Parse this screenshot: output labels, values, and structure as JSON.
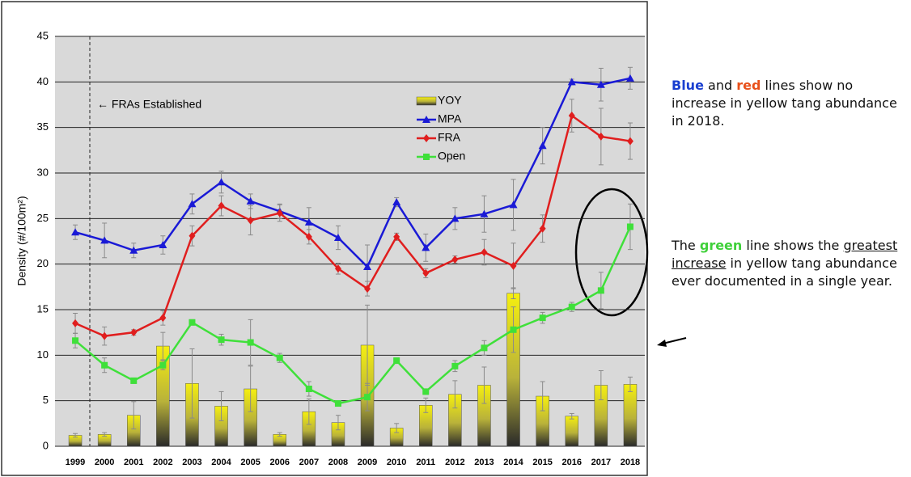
{
  "chart_data": {
    "type": "line",
    "y_label": "Density (#/100m²)",
    "annotation": "← FRAs Established",
    "categories": [
      "1999",
      "2000",
      "2001",
      "2002",
      "2003",
      "2004",
      "2005",
      "2006",
      "2007",
      "2008",
      "2009",
      "2010",
      "2011",
      "2012",
      "2013",
      "2014",
      "2015",
      "2016",
      "2017",
      "2018"
    ],
    "ylim": [
      0,
      45
    ],
    "yticks": [
      0,
      5,
      10,
      15,
      20,
      25,
      30,
      35,
      40,
      45
    ],
    "grid": true,
    "legend": "top-center",
    "series": [
      {
        "name": "YOY",
        "type": "bar",
        "color": "#f2ec1a",
        "values": [
          1.2,
          1.3,
          3.4,
          11.0,
          6.9,
          4.4,
          6.3,
          1.3,
          3.8,
          2.6,
          11.1,
          2.0,
          4.5,
          5.7,
          6.7,
          16.8,
          5.5,
          3.3,
          6.7,
          6.8
        ],
        "errors": [
          0.2,
          0.2,
          1.5,
          1.5,
          3.8,
          1.6,
          2.5,
          0.2,
          1.4,
          0.8,
          4.4,
          0.5,
          0.8,
          1.5,
          2.0,
          0.6,
          1.6,
          0.3,
          1.6,
          0.8
        ]
      },
      {
        "name": "MPA",
        "type": "line",
        "marker": "triangle",
        "color": "#1a1ad6",
        "values": [
          23.5,
          22.6,
          21.5,
          22.1,
          26.6,
          29.0,
          26.9,
          25.8,
          24.6,
          22.9,
          19.7,
          26.8,
          21.8,
          25.0,
          25.5,
          26.5,
          33.0,
          40.0,
          39.7,
          40.4
        ],
        "errors": [
          0.8,
          1.9,
          0.8,
          1.0,
          1.1,
          1.2,
          0.8,
          0.8,
          1.6,
          1.3,
          2.4,
          0.5,
          1.5,
          1.2,
          2.0,
          2.8,
          2.0,
          0.3,
          1.8,
          1.2
        ]
      },
      {
        "name": "FRA",
        "type": "line",
        "marker": "diamond",
        "color": "#e01e1e",
        "values": [
          13.5,
          12.1,
          12.5,
          14.1,
          23.1,
          26.4,
          24.8,
          25.6,
          23.0,
          19.5,
          17.3,
          23.0,
          19.0,
          20.5,
          21.3,
          19.8,
          23.9,
          36.3,
          34.0,
          33.5
        ],
        "errors": [
          1.1,
          1.0,
          0.3,
          0.8,
          1.1,
          1.1,
          1.6,
          0.9,
          0.8,
          0.6,
          0.8,
          0.4,
          0.5,
          0.4,
          1.4,
          2.5,
          1.5,
          1.8,
          3.1,
          2.0
        ]
      },
      {
        "name": "Open",
        "type": "line",
        "marker": "square",
        "color": "#3fe03a",
        "values": [
          11.6,
          8.9,
          7.2,
          8.9,
          13.6,
          11.7,
          11.4,
          9.7,
          6.3,
          4.7,
          5.4,
          9.4,
          6.0,
          8.8,
          10.8,
          12.8,
          14.1,
          15.3,
          17.1,
          24.1
        ],
        "errors": [
          0.8,
          0.8,
          0.3,
          0.5,
          0.3,
          0.6,
          2.5,
          0.5,
          0.8,
          0.3,
          1.5,
          0.3,
          0.3,
          0.6,
          0.8,
          2.5,
          0.6,
          0.5,
          2.0,
          2.5
        ]
      }
    ]
  },
  "notes": [
    {
      "parts": [
        "Blue",
        "and",
        "red",
        "lines show no increase in yellow tang abundance in 2018."
      ]
    },
    {
      "parts": [
        "The",
        "green",
        "line shows the",
        "greatest increase",
        "in yellow tang abundance ever documented in a single year."
      ]
    }
  ]
}
